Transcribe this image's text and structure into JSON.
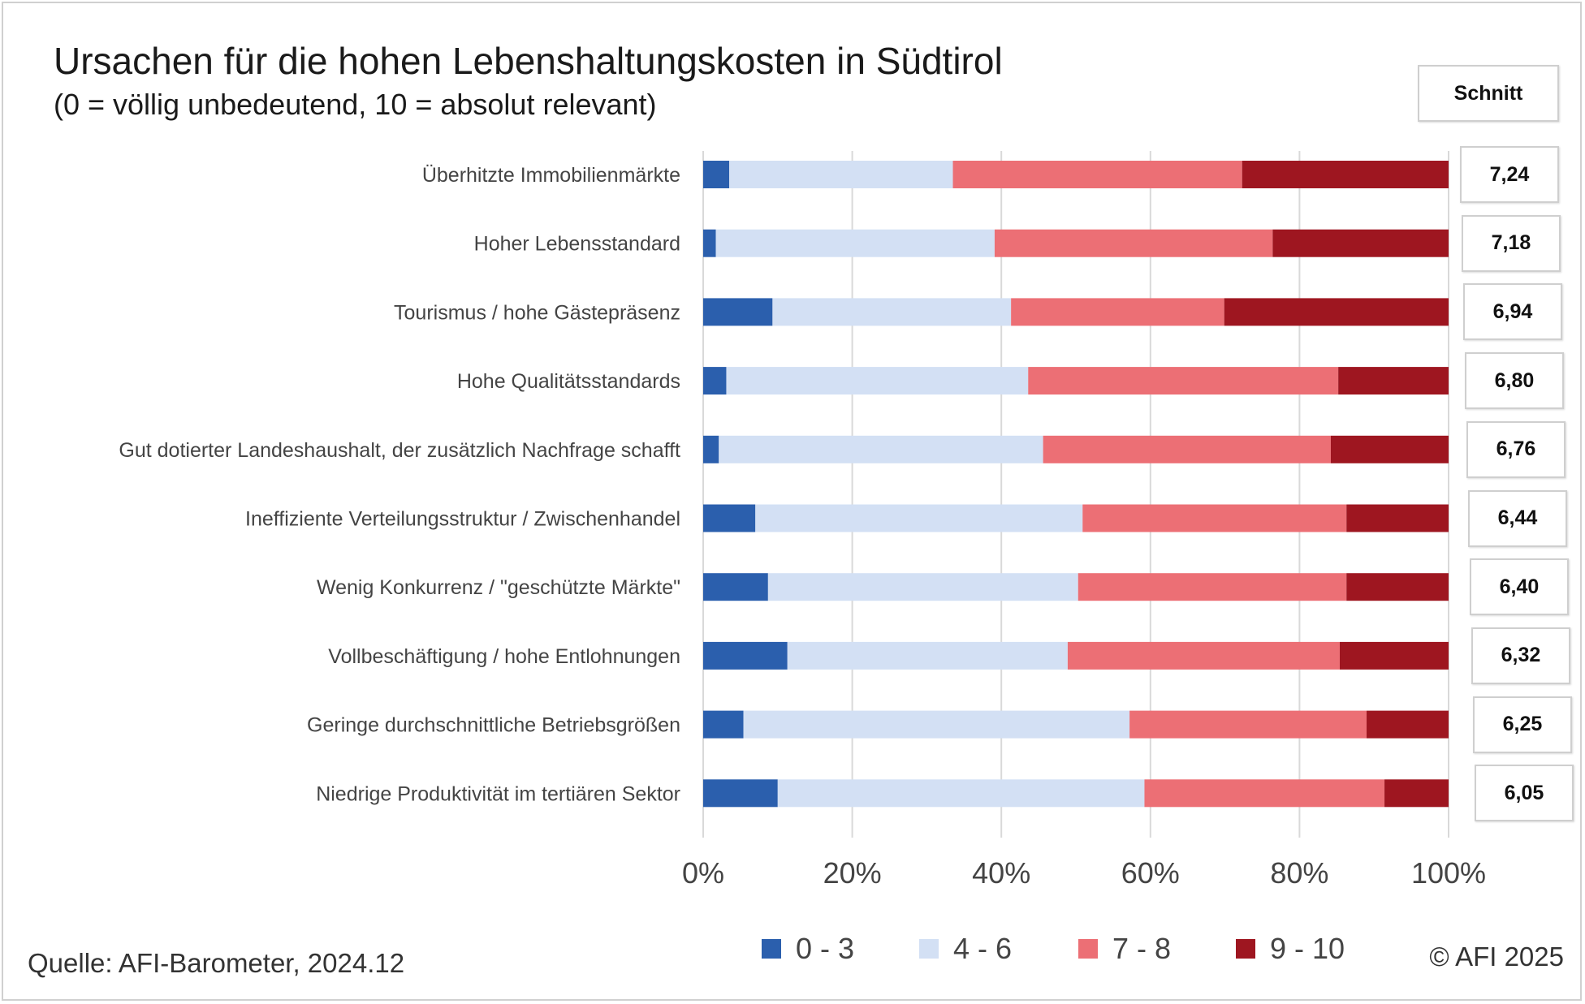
{
  "chart_data": {
    "type": "bar",
    "orientation": "horizontal",
    "stacked": true,
    "percent": true,
    "title": "Ursachen für die hohen Lebenshaltungskosten in Südtirol",
    "subtitle": "(0 = völlig unbedeutend, 10 = absolut relevant)",
    "categories": [
      "Überhitzte Immobilienmärkte",
      "Hoher Lebensstandard",
      "Tourismus / hohe Gästepräsenz",
      "Hohe Qualitätsstandards",
      "Gut dotierter Landeshaushalt, der zusätzlich Nachfrage schafft",
      "Ineffiziente Verteilungsstruktur / Zwischenhandel",
      "Wenig Konkurrenz / \"geschützte Märkte\"",
      "Vollbeschäftigung / hohe Entlohnungen",
      "Geringe durchschnittliche Betriebsgrößen",
      "Niedrige Produktivität im tertiären Sektor"
    ],
    "series": [
      {
        "name": "0 - 3",
        "color": "#2b5fad",
        "values": [
          3.5,
          1.7,
          9.3,
          3.1,
          2.1,
          7.0,
          8.7,
          11.3,
          5.4,
          10.0
        ]
      },
      {
        "name": "4 - 6",
        "color": "#d3e0f4",
        "values": [
          30.0,
          37.4,
          32.0,
          40.5,
          43.5,
          43.9,
          41.6,
          37.6,
          51.8,
          49.2
        ]
      },
      {
        "name": "7 - 8",
        "color": "#ec6f75",
        "values": [
          38.8,
          37.3,
          28.6,
          41.6,
          38.6,
          35.4,
          36.0,
          36.5,
          31.8,
          32.2
        ]
      },
      {
        "name": "9 - 10",
        "color": "#9e1620",
        "values": [
          27.7,
          23.6,
          30.1,
          14.8,
          15.8,
          13.7,
          13.7,
          14.6,
          11.0,
          8.6
        ]
      }
    ],
    "x_ticks": [
      "0%",
      "20%",
      "40%",
      "60%",
      "80%",
      "100%"
    ],
    "xlim": [
      0,
      100
    ],
    "grid": true,
    "legend_position": "bottom",
    "averages_header": "Schnitt",
    "averages": [
      "7,24",
      "7,18",
      "6,94",
      "6,80",
      "6,76",
      "6,44",
      "6,40",
      "6,32",
      "6,25",
      "6,05"
    ]
  },
  "footer": {
    "source": "Quelle: AFI-Barometer, 2024.12",
    "copyright": "© AFI 2025"
  }
}
